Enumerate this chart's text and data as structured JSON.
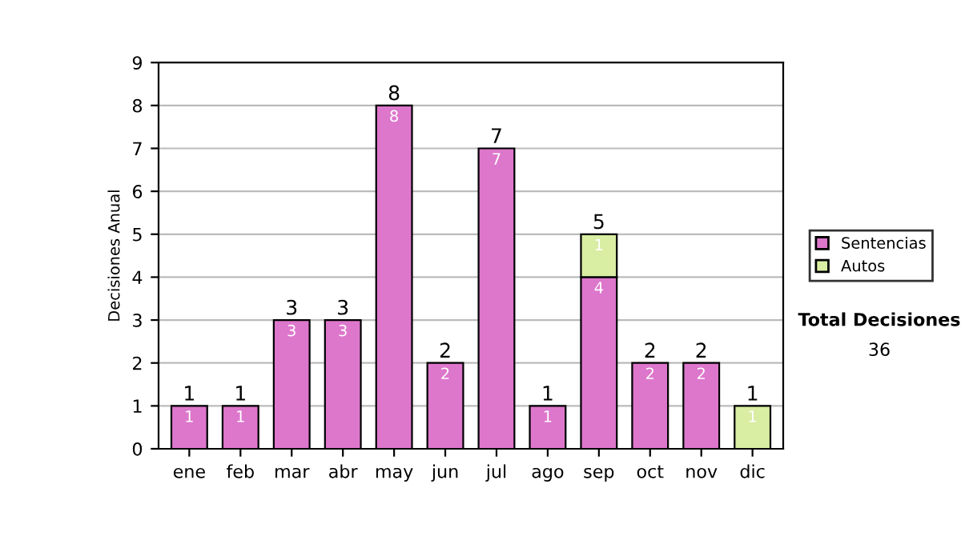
{
  "chart_data": {
    "type": "bar",
    "stacked": true,
    "ylabel": "Decisiones Anual",
    "categories": [
      "ene",
      "feb",
      "mar",
      "abr",
      "may",
      "jun",
      "jul",
      "ago",
      "sep",
      "oct",
      "nov",
      "dic"
    ],
    "series": [
      {
        "name": "Sentencias",
        "color": "#dd77cc",
        "values": [
          1,
          1,
          3,
          3,
          8,
          2,
          7,
          1,
          4,
          2,
          2,
          0
        ],
        "value_labels": [
          "1",
          "1",
          "3",
          "3",
          "8",
          "2",
          "7",
          "1",
          "4",
          "2",
          "2",
          null
        ]
      },
      {
        "name": "Autos",
        "color": "#d9eda3",
        "values": [
          0,
          0,
          0,
          0,
          0,
          0,
          0,
          0,
          1,
          0,
          0,
          1
        ],
        "value_labels": [
          null,
          null,
          null,
          null,
          null,
          null,
          null,
          null,
          "1",
          null,
          null,
          "1"
        ]
      }
    ],
    "totals": [
      "1",
      "1",
      "3",
      "3",
      "8",
      "2",
      "7",
      "1",
      "5",
      "2",
      "2",
      "1"
    ],
    "ylim": [
      0,
      9
    ],
    "yticks": [
      0,
      1,
      2,
      3,
      4,
      5,
      6,
      7,
      8,
      9
    ],
    "grid": "y",
    "legend": "right",
    "annotations": [
      "Total Decisiones",
      "36"
    ]
  }
}
